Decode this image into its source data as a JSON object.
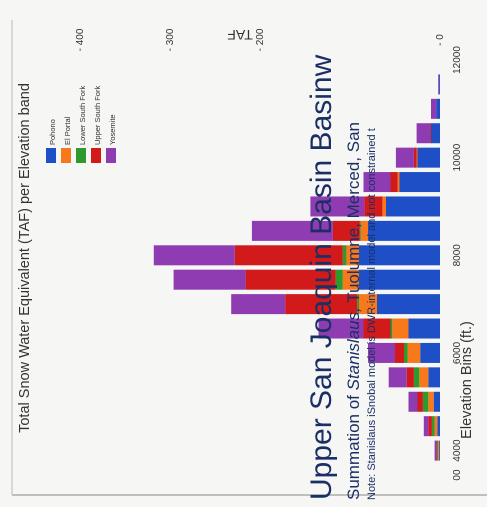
{
  "chart_data": {
    "type": "bar",
    "stacked": true,
    "orientation": "vertical (figure rotated 90° clockwise)",
    "title": "Total Snow Water Equivalent (TAF) per Elevation band",
    "ylabel": "TAF",
    "xlabel": "Elevation Bins (ft.)",
    "ylim": [
      0,
      420
    ],
    "y_ticks": [
      "0",
      "200",
      "300",
      "400"
    ],
    "x_ticks": [
      "00",
      "4000",
      "6000",
      "8000",
      "10000",
      "12000"
    ],
    "categories": [
      3500,
      4000,
      4500,
      5000,
      5500,
      6000,
      6500,
      7000,
      7500,
      8000,
      8500,
      9000,
      9500,
      10000,
      10500,
      11000,
      11500,
      12000
    ],
    "series": [
      {
        "name": "Pohono",
        "color": "#1f4fc6",
        "values": [
          0,
          1,
          3,
          7,
          13,
          22,
          35,
          70,
          90,
          90,
          80,
          60,
          45,
          25,
          10,
          4,
          1,
          0
        ]
      },
      {
        "name": "El Portal",
        "color": "#f7791c",
        "values": [
          0,
          1,
          3,
          6,
          10,
          14,
          18,
          20,
          18,
          14,
          8,
          4,
          2,
          1,
          0,
          0,
          0,
          0
        ]
      },
      {
        "name": "Lower South Fork",
        "color": "#2e9a2e",
        "values": [
          0,
          1,
          3,
          6,
          6,
          4,
          2,
          2,
          8,
          4,
          1,
          0,
          0,
          0,
          0,
          0,
          0,
          0
        ]
      },
      {
        "name": "Upper South Fork",
        "color": "#d21a1a",
        "values": [
          0,
          1,
          4,
          6,
          8,
          10,
          30,
          80,
          100,
          120,
          30,
          20,
          8,
          3,
          1,
          0,
          0,
          0
        ]
      },
      {
        "name": "Yosemite",
        "color": "#8f3cb3",
        "values": [
          0,
          2,
          5,
          10,
          20,
          30,
          50,
          60,
          80,
          90,
          90,
          60,
          30,
          20,
          15,
          6,
          1,
          0
        ]
      }
    ],
    "legend_position": "top-left",
    "grid": false
  },
  "overlay": {
    "title": "Upper San Joaquin Basin Basinw",
    "subtitle_prefix": "Summation of ",
    "subtitle_italic": "Stanislaus,",
    "subtitle_rest": " Tuolumne, Merced, San",
    "note": "Note: Stanislaus iSnobal model is DWR-internal model and not constrained t"
  },
  "colors": {
    "background": "#f6f6f4",
    "axis": "#888888",
    "overlay_text": "#1a2f66"
  }
}
